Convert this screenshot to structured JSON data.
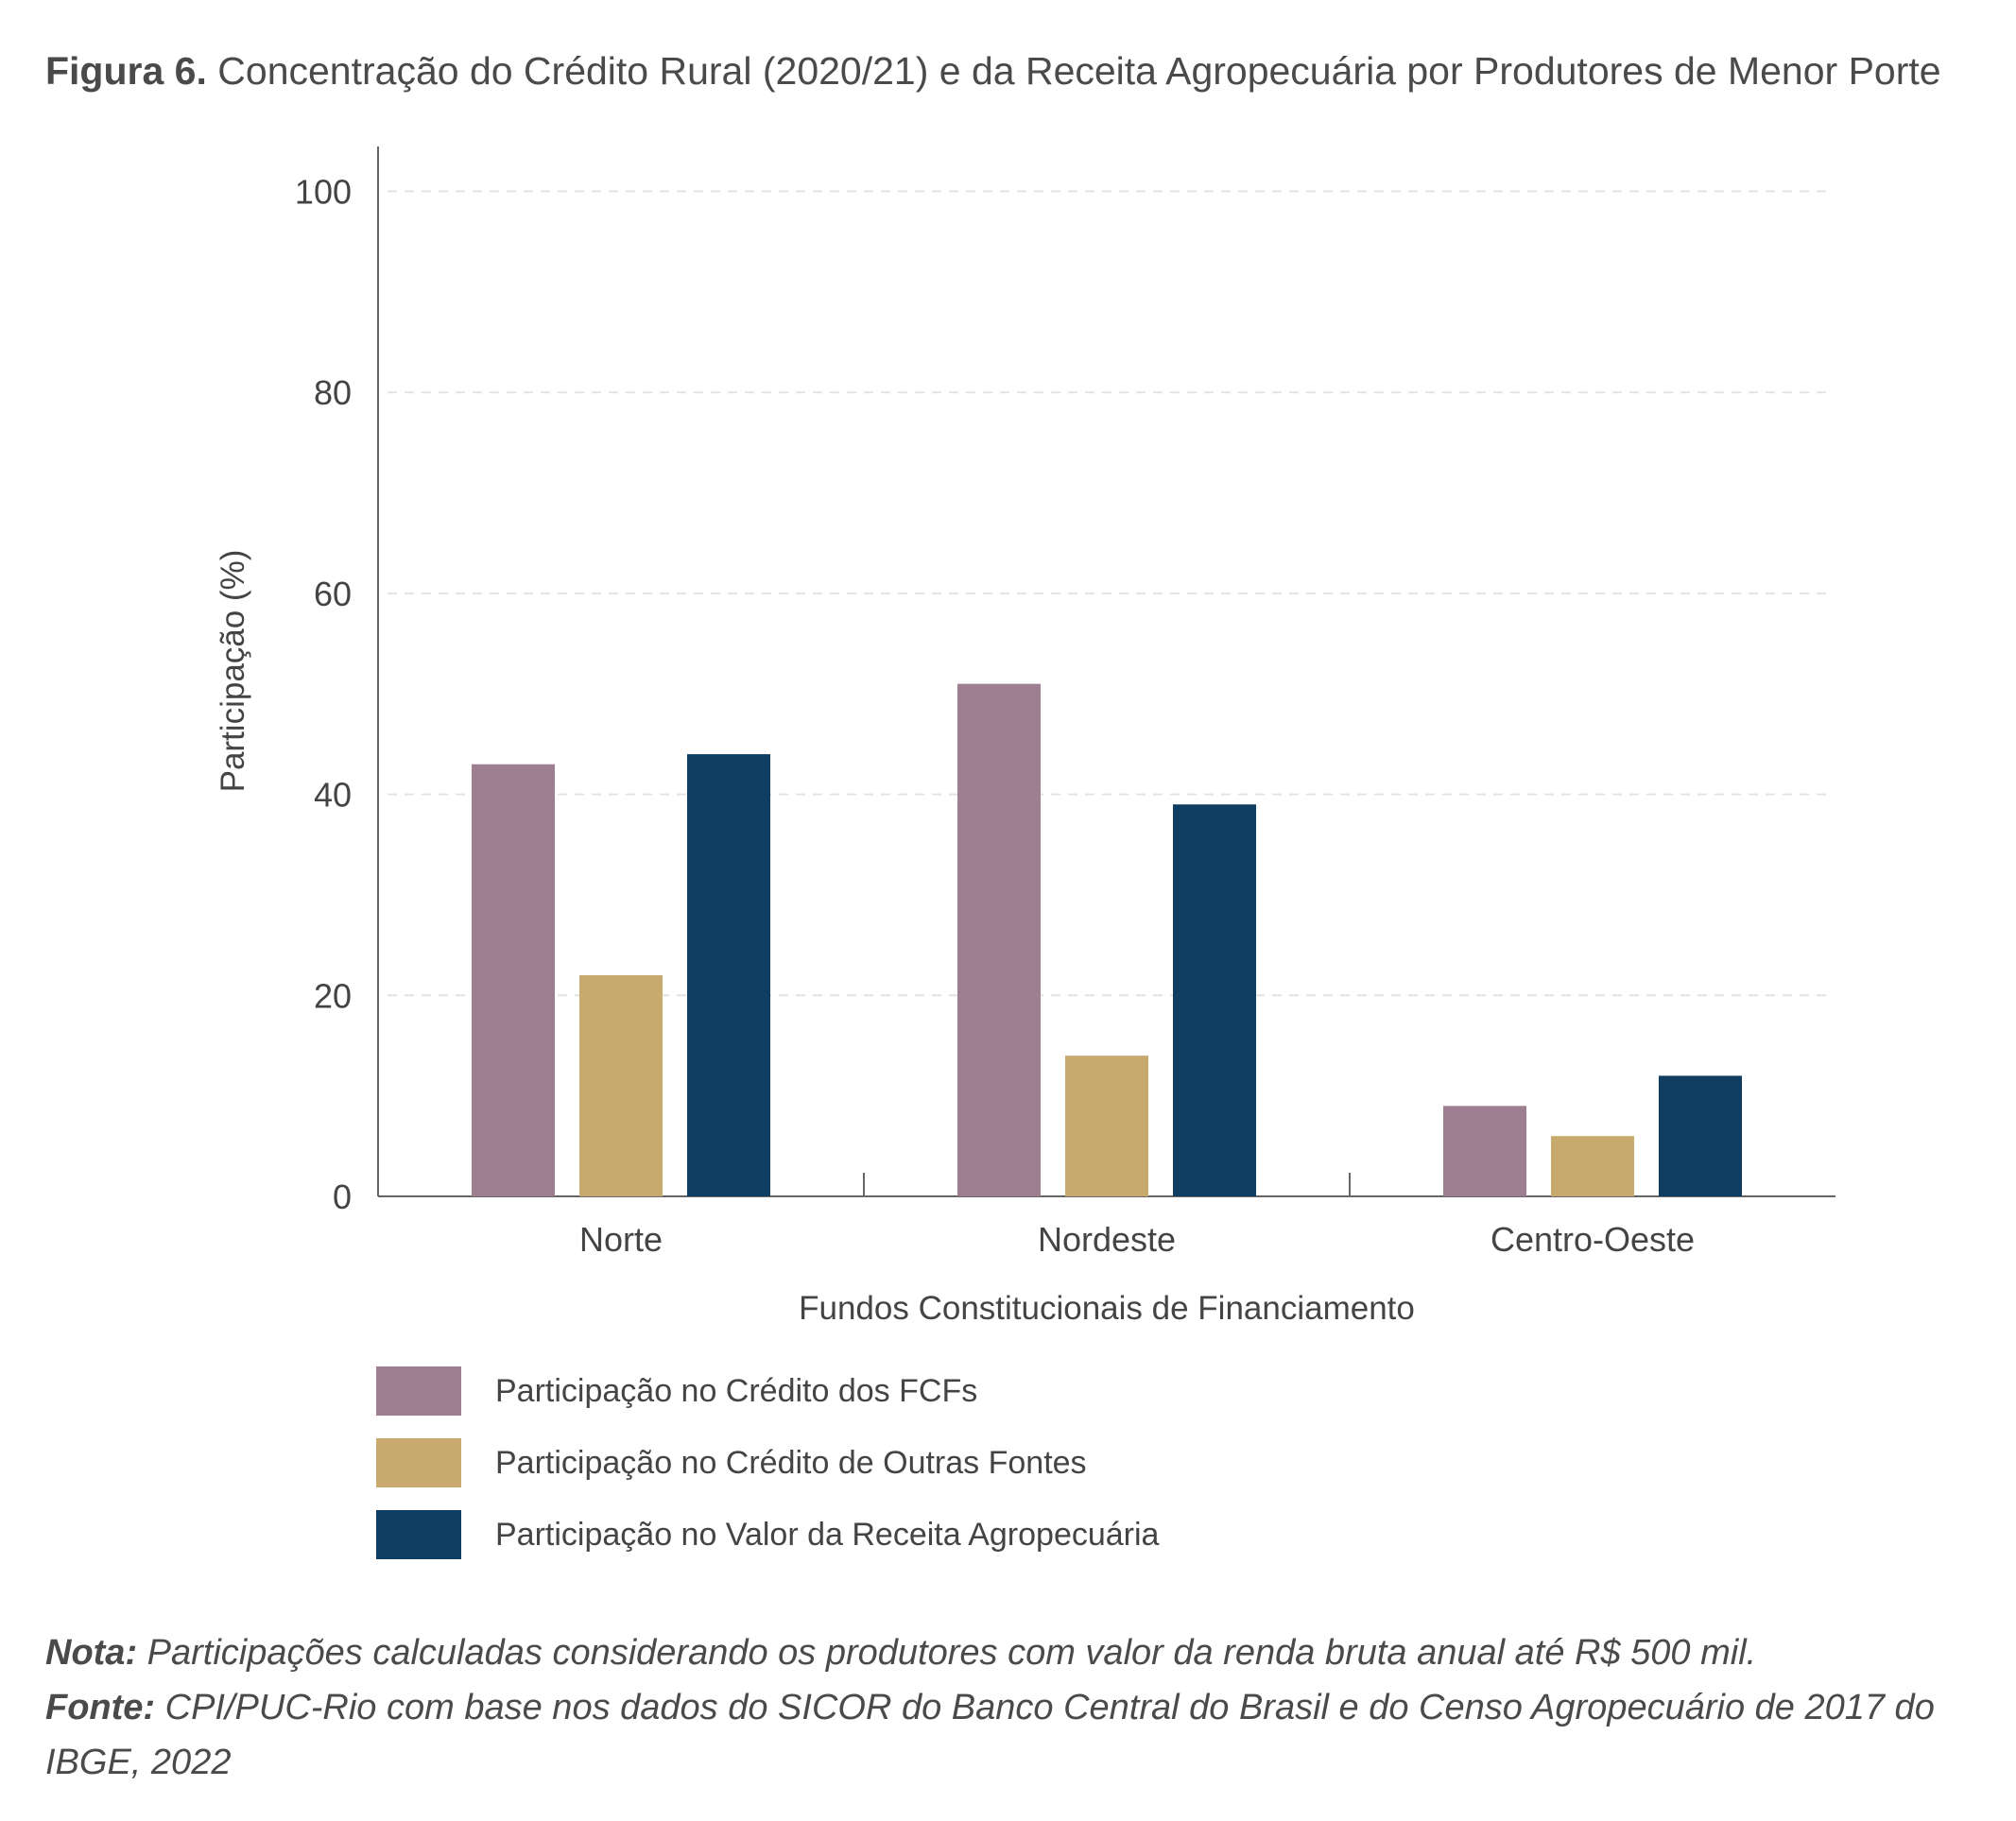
{
  "title": {
    "prefix": "Figura 6.",
    "text": "Concentração do Crédito Rural (2020/21) e da Receita Agropecuária por Produtores de Menor Porte"
  },
  "chart_data": {
    "type": "bar",
    "categories": [
      "Norte",
      "Nordeste",
      "Centro-Oeste"
    ],
    "series": [
      {
        "name": "Participação no Crédito dos FCFs",
        "values": [
          43,
          51,
          9
        ],
        "color": "#9e7e91"
      },
      {
        "name": "Participação no Crédito de Outras Fontes",
        "values": [
          22,
          14,
          6
        ],
        "color": "#c8aa6e"
      },
      {
        "name": "Participação no Valor da Receita Agropecuária",
        "values": [
          44,
          39,
          12
        ],
        "color": "#0f3e62"
      }
    ],
    "xlabel": "Fundos Constitucionais de Financiamento",
    "ylabel": "Participação (%)",
    "ylim": [
      0,
      104
    ],
    "yticks": [
      0,
      20,
      40,
      60,
      80,
      100
    ],
    "grid": true,
    "legend_position": "bottom-left"
  },
  "notes": {
    "nota_label": "Nota:",
    "nota_text": " Participações calculadas considerando os produtores com valor da renda bruta anual até R$ 500 mil.",
    "fonte_label": "Fonte:",
    "fonte_text": " CPI/PUC-Rio com base nos dados do SICOR do Banco Central do Brasil e do Censo Agropecuário de 2017 do IBGE, 2022"
  }
}
